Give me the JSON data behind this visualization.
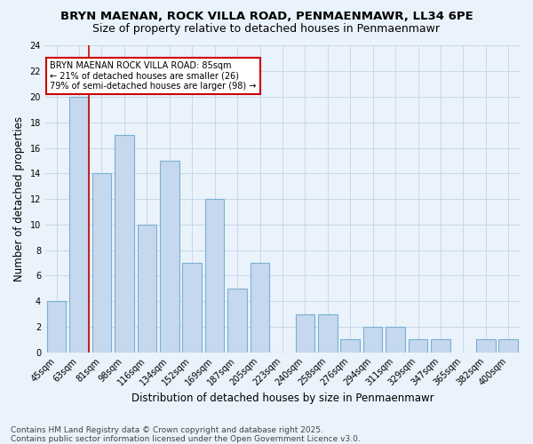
{
  "title1": "BRYN MAENAN, ROCK VILLA ROAD, PENMAENMAWR, LL34 6PE",
  "title2": "Size of property relative to detached houses in Penmaenmawr",
  "xlabel": "Distribution of detached houses by size in Penmaenmawr",
  "ylabel": "Number of detached properties",
  "categories": [
    "45sqm",
    "63sqm",
    "81sqm",
    "98sqm",
    "116sqm",
    "134sqm",
    "152sqm",
    "169sqm",
    "187sqm",
    "205sqm",
    "223sqm",
    "240sqm",
    "258sqm",
    "276sqm",
    "294sqm",
    "311sqm",
    "329sqm",
    "347sqm",
    "365sqm",
    "382sqm",
    "400sqm"
  ],
  "values": [
    4,
    20,
    14,
    17,
    10,
    15,
    7,
    12,
    5,
    7,
    0,
    3,
    3,
    1,
    2,
    2,
    1,
    1,
    0,
    1,
    1
  ],
  "bar_color": "#c5d8ed",
  "bar_edge_color": "#7aafd4",
  "grid_color": "#c8d8e8",
  "background_color": "#eaf2fb",
  "redline_index": 1,
  "redline_color": "#cc0000",
  "annotation_text": "BRYN MAENAN ROCK VILLA ROAD: 85sqm\n← 21% of detached houses are smaller (26)\n79% of semi-detached houses are larger (98) →",
  "annotation_box_color": "#ffffff",
  "annotation_edge_color": "#cc0000",
  "ylim": [
    0,
    24
  ],
  "yticks": [
    0,
    2,
    4,
    6,
    8,
    10,
    12,
    14,
    16,
    18,
    20,
    22,
    24
  ],
  "footer": "Contains HM Land Registry data © Crown copyright and database right 2025.\nContains public sector information licensed under the Open Government Licence v3.0.",
  "title_fontsize": 9.5,
  "subtitle_fontsize": 9,
  "axis_label_fontsize": 8.5,
  "tick_fontsize": 7,
  "annotation_fontsize": 7,
  "footer_fontsize": 6.5
}
